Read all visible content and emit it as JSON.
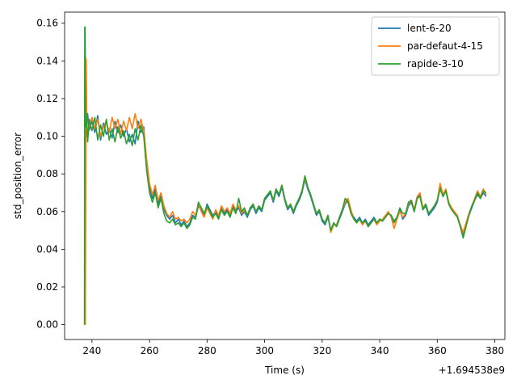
{
  "chart_data": {
    "type": "line",
    "title": "",
    "xlabel": "Time (s)",
    "ylabel": "std_position_error",
    "x_offset_label": "+1.694538e9",
    "xlim": [
      230.5,
      383.5
    ],
    "ylim": [
      -0.0079,
      0.1659
    ],
    "x_ticks": [
      240,
      260,
      280,
      300,
      320,
      340,
      360,
      380
    ],
    "x_tick_labels": [
      "240",
      "260",
      "280",
      "300",
      "320",
      "340",
      "360",
      "380"
    ],
    "y_ticks": [
      0.0,
      0.02,
      0.04,
      0.06,
      0.08,
      0.1,
      0.12,
      0.14,
      0.16
    ],
    "y_tick_labels": [
      "0.00",
      "0.02",
      "0.04",
      "0.06",
      "0.08",
      "0.10",
      "0.12",
      "0.14",
      "0.16"
    ],
    "grid": false,
    "legend_position": "top-right",
    "series": [
      {
        "name": "lent-6-20",
        "color": "#1f77b4",
        "x": [
          237.5,
          237.6,
          237.8,
          238,
          238.5,
          239,
          240,
          241,
          242,
          243,
          244,
          245,
          246,
          247,
          248,
          249,
          250,
          251,
          252,
          253,
          254,
          255,
          256,
          257,
          258,
          259,
          260,
          261,
          262,
          263,
          264,
          265,
          266,
          267,
          268,
          269,
          270,
          271,
          272,
          273,
          274,
          275,
          276,
          277,
          278,
          279,
          280,
          281,
          282,
          283,
          284,
          285,
          286,
          287,
          288,
          289,
          290,
          291,
          292,
          293,
          294,
          295,
          296,
          297,
          298,
          299,
          300,
          301,
          302,
          303,
          304,
          305,
          306,
          307,
          308,
          309,
          310,
          311,
          312,
          313,
          314,
          315,
          316,
          317,
          318,
          319,
          320,
          321,
          322,
          323,
          324,
          325,
          326,
          327,
          328,
          329,
          330,
          331,
          332,
          333,
          334,
          335,
          336,
          337,
          338,
          339,
          340,
          341,
          342,
          343,
          344,
          345,
          346,
          347,
          348,
          349,
          350,
          351,
          352,
          353,
          354,
          355,
          356,
          357,
          358,
          359,
          360,
          361,
          362,
          363,
          364,
          365,
          366,
          367,
          368,
          369,
          370,
          371,
          372,
          373,
          374,
          375,
          376,
          377
        ],
        "y": [
          0.0,
          0.158,
          0.125,
          0.1,
          0.112,
          0.103,
          0.108,
          0.102,
          0.111,
          0.098,
          0.107,
          0.101,
          0.104,
          0.099,
          0.108,
          0.102,
          0.106,
          0.1,
          0.104,
          0.097,
          0.101,
          0.096,
          0.108,
          0.102,
          0.105,
          0.085,
          0.073,
          0.067,
          0.072,
          0.064,
          0.069,
          0.061,
          0.058,
          0.056,
          0.058,
          0.054,
          0.056,
          0.053,
          0.055,
          0.052,
          0.054,
          0.058,
          0.057,
          0.063,
          0.061,
          0.058,
          0.064,
          0.061,
          0.058,
          0.06,
          0.057,
          0.062,
          0.059,
          0.061,
          0.058,
          0.063,
          0.06,
          0.062,
          0.058,
          0.06,
          0.057,
          0.061,
          0.063,
          0.059,
          0.062,
          0.06,
          0.066,
          0.068,
          0.07,
          0.065,
          0.071,
          0.068,
          0.073,
          0.066,
          0.061,
          0.063,
          0.059,
          0.063,
          0.066,
          0.07,
          0.077,
          0.072,
          0.068,
          0.063,
          0.058,
          0.06,
          0.055,
          0.053,
          0.057,
          0.05,
          0.054,
          0.052,
          0.056,
          0.06,
          0.064,
          0.066,
          0.06,
          0.057,
          0.055,
          0.057,
          0.054,
          0.056,
          0.053,
          0.055,
          0.057,
          0.054,
          0.056,
          0.055,
          0.057,
          0.059,
          0.058,
          0.055,
          0.057,
          0.061,
          0.056,
          0.058,
          0.063,
          0.065,
          0.06,
          0.067,
          0.069,
          0.061,
          0.063,
          0.058,
          0.06,
          0.062,
          0.065,
          0.073,
          0.068,
          0.071,
          0.064,
          0.061,
          0.059,
          0.057,
          0.052,
          0.048,
          0.053,
          0.058,
          0.062,
          0.066,
          0.069,
          0.067,
          0.07,
          0.068
        ],
        "line_width": 1.6
      },
      {
        "name": "par-defaut-4-15",
        "color": "#ff7f0e",
        "x": [
          237.5,
          237.7,
          237.9,
          238,
          238.2,
          238.5,
          239,
          240,
          241,
          242,
          243,
          244,
          245,
          246,
          247,
          248,
          249,
          250,
          251,
          252,
          253,
          254,
          255,
          256,
          257,
          258,
          259,
          260,
          261,
          262,
          263,
          264,
          265,
          266,
          267,
          268,
          269,
          270,
          271,
          272,
          273,
          274,
          275,
          276,
          277,
          278,
          279,
          280,
          281,
          282,
          283,
          284,
          285,
          286,
          287,
          288,
          289,
          290,
          291,
          292,
          293,
          294,
          295,
          296,
          297,
          298,
          299,
          300,
          301,
          302,
          303,
          304,
          305,
          306,
          307,
          308,
          309,
          310,
          311,
          312,
          313,
          314,
          315,
          316,
          317,
          318,
          319,
          320,
          321,
          322,
          323,
          324,
          325,
          326,
          327,
          328,
          329,
          330,
          331,
          332,
          333,
          334,
          335,
          336,
          337,
          338,
          339,
          340,
          341,
          342,
          343,
          344,
          345,
          346,
          347,
          348,
          349,
          350,
          351,
          352,
          353,
          354,
          355,
          356,
          357,
          358,
          359,
          360,
          361,
          362,
          363,
          364,
          365,
          366,
          367,
          368,
          369,
          370,
          371,
          372,
          373,
          374,
          375,
          376,
          377
        ],
        "y": [
          0.0,
          0.0,
          0.095,
          0.141,
          0.11,
          0.098,
          0.106,
          0.11,
          0.104,
          0.109,
          0.1,
          0.105,
          0.108,
          0.102,
          0.11,
          0.104,
          0.109,
          0.101,
          0.108,
          0.103,
          0.11,
          0.104,
          0.112,
          0.104,
          0.109,
          0.103,
          0.088,
          0.075,
          0.069,
          0.074,
          0.066,
          0.07,
          0.063,
          0.059,
          0.057,
          0.06,
          0.056,
          0.057,
          0.055,
          0.056,
          0.054,
          0.056,
          0.06,
          0.058,
          0.064,
          0.06,
          0.057,
          0.062,
          0.059,
          0.056,
          0.061,
          0.058,
          0.063,
          0.06,
          0.062,
          0.059,
          0.064,
          0.061,
          0.063,
          0.059,
          0.061,
          0.058,
          0.062,
          0.064,
          0.06,
          0.063,
          0.061,
          0.067,
          0.069,
          0.071,
          0.066,
          0.072,
          0.069,
          0.074,
          0.067,
          0.062,
          0.064,
          0.06,
          0.064,
          0.067,
          0.071,
          0.078,
          0.073,
          0.069,
          0.064,
          0.059,
          0.061,
          0.056,
          0.054,
          0.058,
          0.049,
          0.053,
          0.053,
          0.057,
          0.061,
          0.065,
          0.067,
          0.061,
          0.056,
          0.054,
          0.056,
          0.053,
          0.055,
          0.052,
          0.054,
          0.056,
          0.053,
          0.055,
          0.056,
          0.058,
          0.06,
          0.057,
          0.051,
          0.056,
          0.06,
          0.057,
          0.059,
          0.064,
          0.066,
          0.061,
          0.068,
          0.07,
          0.062,
          0.064,
          0.059,
          0.061,
          0.063,
          0.066,
          0.075,
          0.069,
          0.072,
          0.065,
          0.062,
          0.06,
          0.058,
          0.053,
          0.049,
          0.054,
          0.059,
          0.063,
          0.067,
          0.071,
          0.068,
          0.072,
          0.069
        ],
        "line_width": 1.6
      },
      {
        "name": "rapide-3-10",
        "color": "#2ca02c",
        "x": [
          237.4,
          237.5,
          237.6,
          237.8,
          238,
          238.5,
          239,
          240,
          241,
          242,
          243,
          244,
          245,
          246,
          247,
          248,
          249,
          250,
          251,
          252,
          253,
          254,
          255,
          256,
          257,
          258,
          259,
          260,
          261,
          262,
          263,
          264,
          265,
          266,
          267,
          268,
          269,
          270,
          271,
          272,
          273,
          274,
          275,
          276,
          277,
          278,
          279,
          280,
          281,
          282,
          283,
          284,
          285,
          286,
          287,
          288,
          289,
          290,
          291,
          292,
          293,
          294,
          295,
          296,
          297,
          298,
          299,
          300,
          301,
          302,
          303,
          304,
          305,
          306,
          307,
          308,
          309,
          310,
          311,
          312,
          313,
          314,
          315,
          316,
          317,
          318,
          319,
          320,
          321,
          322,
          323,
          324,
          325,
          326,
          327,
          328,
          329,
          330,
          331,
          332,
          333,
          334,
          335,
          336,
          337,
          338,
          339,
          340,
          341,
          342,
          343,
          344,
          345,
          346,
          347,
          348,
          349,
          350,
          351,
          352,
          353,
          354,
          355,
          356,
          357,
          358,
          359,
          360,
          361,
          362,
          363,
          364,
          365,
          366,
          367,
          368,
          369,
          370,
          371,
          372,
          373,
          374,
          375,
          376,
          377
        ],
        "y": [
          0.0,
          0.158,
          0.13,
          0.105,
          0.112,
          0.097,
          0.109,
          0.103,
          0.11,
          0.098,
          0.106,
          0.1,
          0.109,
          0.098,
          0.104,
          0.097,
          0.105,
          0.099,
          0.103,
          0.096,
          0.101,
          0.095,
          0.104,
          0.098,
          0.106,
          0.1,
          0.082,
          0.07,
          0.065,
          0.07,
          0.062,
          0.067,
          0.059,
          0.055,
          0.054,
          0.056,
          0.053,
          0.054,
          0.052,
          0.054,
          0.051,
          0.053,
          0.057,
          0.056,
          0.065,
          0.062,
          0.059,
          0.063,
          0.06,
          0.057,
          0.059,
          0.056,
          0.061,
          0.058,
          0.06,
          0.057,
          0.062,
          0.059,
          0.067,
          0.06,
          0.062,
          0.058,
          0.062,
          0.064,
          0.06,
          0.063,
          0.061,
          0.067,
          0.069,
          0.071,
          0.066,
          0.072,
          0.069,
          0.074,
          0.067,
          0.062,
          0.064,
          0.06,
          0.064,
          0.067,
          0.071,
          0.079,
          0.073,
          0.069,
          0.064,
          0.059,
          0.061,
          0.056,
          0.054,
          0.058,
          0.05,
          0.054,
          0.052,
          0.057,
          0.061,
          0.067,
          0.065,
          0.059,
          0.056,
          0.054,
          0.056,
          0.054,
          0.055,
          0.052,
          0.054,
          0.056,
          0.054,
          0.056,
          0.055,
          0.057,
          0.059,
          0.058,
          0.054,
          0.057,
          0.062,
          0.059,
          0.059,
          0.065,
          0.066,
          0.06,
          0.067,
          0.068,
          0.061,
          0.064,
          0.059,
          0.061,
          0.063,
          0.066,
          0.072,
          0.068,
          0.071,
          0.064,
          0.061,
          0.059,
          0.057,
          0.052,
          0.046,
          0.052,
          0.058,
          0.063,
          0.066,
          0.07,
          0.067,
          0.071,
          0.07
        ],
        "line_width": 1.6
      }
    ]
  }
}
